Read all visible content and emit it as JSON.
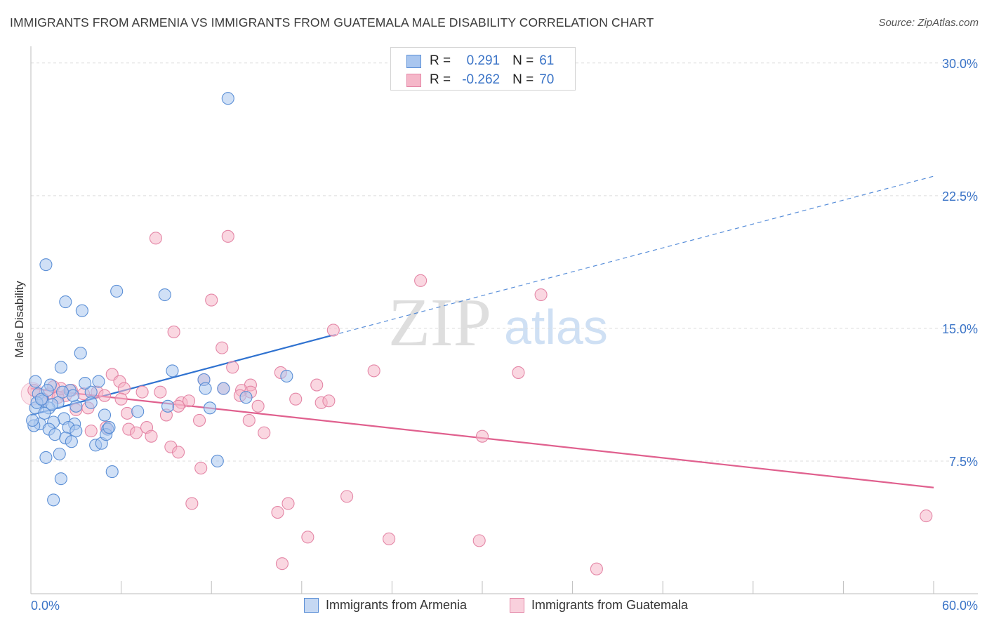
{
  "header": {
    "title": "IMMIGRANTS FROM ARMENIA VS IMMIGRANTS FROM GUATEMALA MALE DISABILITY CORRELATION CHART",
    "source": "Source: ZipAtlas.com"
  },
  "colors": {
    "blue_fill": "#a9c6ef",
    "blue_stroke": "#5b8fd6",
    "blue_line": "#2f72d0",
    "pink_fill": "#f5b7c9",
    "pink_stroke": "#e486a6",
    "pink_line": "#e0608e",
    "grid": "#dcdcdc",
    "axis_text": "#3b74c7"
  },
  "legend": {
    "r_label": "R =",
    "n_label": "N =",
    "rows": [
      {
        "series": "Immigrants from Armenia",
        "r": "0.291",
        "n": "61"
      },
      {
        "series": "Immigrants from Guatemala",
        "r": "-0.262",
        "n": "70"
      }
    ]
  },
  "watermark": {
    "zip": "ZIP",
    "atlas": "atlas"
  },
  "chart_data": {
    "type": "scatter",
    "title": "IMMIGRANTS FROM ARMENIA VS IMMIGRANTS FROM GUATEMALA MALE DISABILITY CORRELATION CHART",
    "xlabel": "",
    "ylabel": "Male Disability",
    "xlim": [
      0,
      60
    ],
    "ylim": [
      0,
      31.5
    ],
    "x_tick_labels": [
      "0.0%",
      "60.0%"
    ],
    "y_ticks": [
      7.5,
      15.0,
      22.5,
      30.0
    ],
    "y_tick_labels": [
      "7.5%",
      "15.0%",
      "22.5%",
      "30.0%"
    ],
    "legend_position": "top-center",
    "series": [
      {
        "name": "Immigrants from Armenia",
        "color": "#5b8fd6",
        "r": 0.291,
        "n": 61,
        "trend": {
          "x0": 0.0,
          "y0": 10.1,
          "x1": 20.0,
          "y1": 14.6,
          "dash_to_x": 60.0,
          "dash_to_y": 23.6
        },
        "points": [
          [
            13.1,
            28.0
          ],
          [
            1.0,
            18.6
          ],
          [
            2.3,
            16.5
          ],
          [
            3.4,
            16.0
          ],
          [
            5.7,
            17.1
          ],
          [
            8.9,
            16.9
          ],
          [
            3.3,
            13.6
          ],
          [
            2.0,
            12.8
          ],
          [
            9.4,
            12.6
          ],
          [
            17.0,
            12.3
          ],
          [
            11.5,
            12.1
          ],
          [
            4.5,
            12.0
          ],
          [
            1.3,
            11.8
          ],
          [
            2.6,
            11.5
          ],
          [
            4.0,
            11.4
          ],
          [
            11.6,
            11.6
          ],
          [
            12.8,
            11.6
          ],
          [
            14.3,
            11.1
          ],
          [
            0.5,
            11.3
          ],
          [
            0.8,
            10.9
          ],
          [
            1.8,
            10.8
          ],
          [
            3.0,
            10.6
          ],
          [
            0.3,
            10.5
          ],
          [
            1.2,
            10.5
          ],
          [
            9.1,
            10.6
          ],
          [
            11.9,
            10.5
          ],
          [
            7.1,
            10.3
          ],
          [
            4.9,
            10.1
          ],
          [
            2.2,
            9.9
          ],
          [
            1.5,
            9.7
          ],
          [
            0.6,
            9.6
          ],
          [
            0.2,
            9.5
          ],
          [
            2.9,
            9.6
          ],
          [
            2.5,
            9.4
          ],
          [
            1.2,
            9.3
          ],
          [
            3.0,
            9.2
          ],
          [
            5.1,
            9.3
          ],
          [
            1.6,
            9.0
          ],
          [
            2.3,
            8.8
          ],
          [
            2.7,
            8.6
          ],
          [
            4.3,
            8.4
          ],
          [
            4.7,
            8.5
          ],
          [
            5.0,
            9.0
          ],
          [
            1.9,
            7.9
          ],
          [
            1.0,
            7.7
          ],
          [
            12.4,
            7.5
          ],
          [
            5.4,
            6.9
          ],
          [
            2.0,
            6.5
          ],
          [
            1.5,
            5.3
          ],
          [
            0.4,
            10.8
          ],
          [
            0.7,
            11.0
          ],
          [
            1.1,
            11.5
          ],
          [
            0.9,
            10.2
          ],
          [
            1.4,
            10.7
          ],
          [
            2.8,
            11.2
          ],
          [
            3.6,
            11.9
          ],
          [
            0.1,
            9.8
          ],
          [
            0.3,
            12.0
          ],
          [
            2.1,
            11.4
          ],
          [
            5.2,
            9.4
          ],
          [
            4.0,
            10.8
          ]
        ]
      },
      {
        "name": "Immigrants from Guatemala",
        "color": "#e486a6",
        "r": -0.262,
        "n": 70,
        "trend": {
          "x0": 0.0,
          "y0": 11.6,
          "x1": 60.0,
          "y1": 6.0
        },
        "points": [
          [
            8.3,
            20.1
          ],
          [
            13.1,
            20.2
          ],
          [
            25.9,
            17.7
          ],
          [
            33.9,
            16.9
          ],
          [
            12.0,
            16.6
          ],
          [
            20.1,
            14.9
          ],
          [
            9.5,
            14.8
          ],
          [
            12.7,
            13.9
          ],
          [
            13.4,
            12.8
          ],
          [
            16.6,
            12.5
          ],
          [
            22.8,
            12.6
          ],
          [
            32.4,
            12.5
          ],
          [
            5.4,
            12.4
          ],
          [
            5.9,
            12.0
          ],
          [
            11.5,
            12.1
          ],
          [
            12.8,
            11.6
          ],
          [
            14.6,
            11.8
          ],
          [
            19.0,
            11.8
          ],
          [
            6.2,
            11.6
          ],
          [
            0.2,
            11.5
          ],
          [
            1.2,
            11.3
          ],
          [
            2.3,
            11.2
          ],
          [
            4.4,
            11.4
          ],
          [
            7.4,
            11.4
          ],
          [
            8.6,
            11.4
          ],
          [
            14.0,
            11.5
          ],
          [
            14.6,
            11.4
          ],
          [
            17.6,
            11.0
          ],
          [
            19.3,
            10.8
          ],
          [
            19.8,
            10.9
          ],
          [
            10.0,
            10.8
          ],
          [
            10.5,
            10.9
          ],
          [
            9.8,
            10.6
          ],
          [
            15.1,
            10.6
          ],
          [
            1.8,
            11.1
          ],
          [
            3.0,
            10.4
          ],
          [
            3.8,
            10.5
          ],
          [
            9.0,
            10.1
          ],
          [
            6.4,
            10.2
          ],
          [
            11.2,
            9.8
          ],
          [
            14.5,
            9.8
          ],
          [
            5.0,
            9.4
          ],
          [
            6.5,
            9.3
          ],
          [
            7.7,
            9.4
          ],
          [
            8.0,
            8.9
          ],
          [
            7.0,
            9.1
          ],
          [
            15.5,
            9.1
          ],
          [
            4.0,
            9.2
          ],
          [
            30.0,
            8.9
          ],
          [
            9.3,
            8.3
          ],
          [
            9.8,
            8.0
          ],
          [
            11.3,
            7.1
          ],
          [
            21.0,
            5.5
          ],
          [
            10.7,
            5.1
          ],
          [
            17.1,
            5.1
          ],
          [
            16.4,
            4.6
          ],
          [
            59.5,
            4.4
          ],
          [
            18.4,
            3.2
          ],
          [
            23.8,
            3.1
          ],
          [
            29.8,
            3.0
          ],
          [
            16.7,
            1.7
          ],
          [
            37.6,
            1.4
          ],
          [
            4.9,
            11.2
          ],
          [
            2.0,
            11.6
          ],
          [
            3.5,
            11.3
          ],
          [
            0.8,
            11.0
          ],
          [
            1.5,
            11.7
          ],
          [
            2.7,
            11.5
          ],
          [
            6.0,
            11.0
          ],
          [
            13.9,
            11.2
          ]
        ]
      }
    ]
  }
}
